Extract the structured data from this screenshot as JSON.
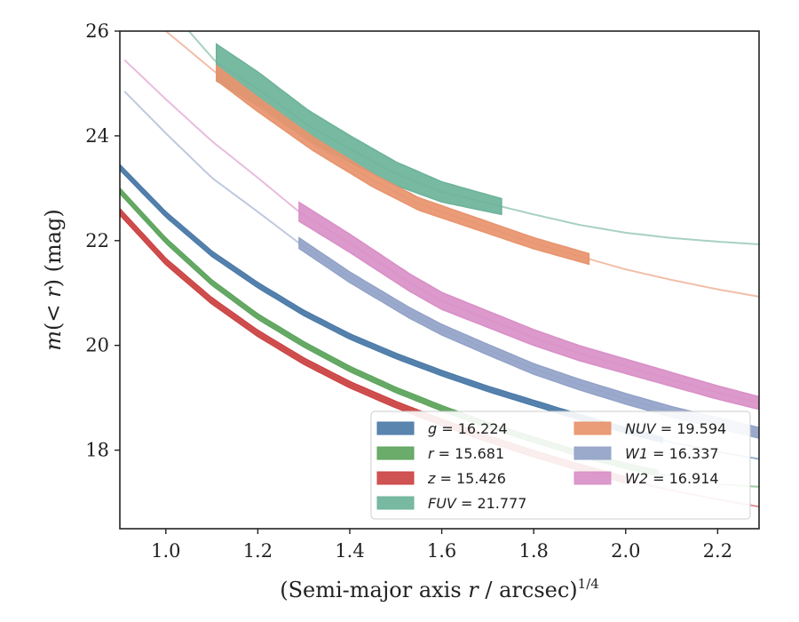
{
  "chart_data": {
    "type": "line",
    "xlabel": "(Semi-major axis r / arcsec)",
    "xlabel_sup": "1/4",
    "ylabel": "m(< r) (mag)",
    "xlim": [
      0.9,
      2.29
    ],
    "ylim": [
      26.0,
      16.5
    ],
    "y_inverted": true,
    "xticks": [
      1.0,
      1.2,
      1.4,
      1.6,
      1.8,
      2.0,
      2.2
    ],
    "xtick_labels": [
      "1.0",
      "1.2",
      "1.4",
      "1.6",
      "1.8",
      "2.0",
      "2.2"
    ],
    "yticks": [
      18,
      20,
      22,
      24,
      26
    ],
    "ytick_labels": [
      "18",
      "20",
      "22",
      "24",
      "26"
    ],
    "grid": false,
    "legend_position": "bottom-right",
    "series": [
      {
        "key": "g",
        "name": "g = 16.224",
        "color": "#4c7ba8",
        "x": [
          0.9,
          1.0,
          1.1,
          1.2,
          1.3,
          1.4,
          1.5,
          1.6,
          1.7,
          1.8,
          1.9,
          2.0,
          2.1,
          2.2,
          2.29
        ],
        "y": [
          23.4,
          22.5,
          21.75,
          21.15,
          20.62,
          20.17,
          19.8,
          19.47,
          19.17,
          18.9,
          18.63,
          18.38,
          18.15,
          17.97,
          17.83
        ],
        "solid_range": [
          0.9,
          2.08
        ],
        "band": [
          0.05,
          0.05
        ]
      },
      {
        "key": "r",
        "name": "r = 15.681",
        "color": "#5ea55e",
        "x": [
          0.9,
          1.0,
          1.1,
          1.2,
          1.3,
          1.4,
          1.5,
          1.6,
          1.7,
          1.8,
          1.9,
          2.0,
          2.1,
          2.2,
          2.29
        ],
        "y": [
          22.95,
          22.0,
          21.2,
          20.55,
          20.02,
          19.55,
          19.15,
          18.8,
          18.48,
          18.2,
          17.93,
          17.7,
          17.5,
          17.35,
          17.3
        ],
        "solid_range": [
          0.9,
          2.07
        ],
        "band": [
          0.05,
          0.05
        ]
      },
      {
        "key": "z",
        "name": "z = 15.426",
        "color": "#cc4444",
        "x": [
          0.9,
          1.0,
          1.1,
          1.2,
          1.3,
          1.4,
          1.5,
          1.6,
          1.7,
          1.8,
          1.9,
          2.0,
          2.1,
          2.2,
          2.29
        ],
        "y": [
          22.55,
          21.6,
          20.85,
          20.23,
          19.7,
          19.25,
          18.87,
          18.53,
          18.22,
          17.93,
          17.67,
          17.43,
          17.23,
          17.06,
          16.92
        ],
        "solid_range": [
          0.9,
          2.0
        ],
        "band": [
          0.06,
          0.06
        ]
      },
      {
        "key": "FUV",
        "name": "FUV = 21.777",
        "color": "#6db39a",
        "x": [
          1.05,
          1.11,
          1.2,
          1.31,
          1.4,
          1.5,
          1.6,
          1.73,
          1.8,
          1.9,
          2.0,
          2.1,
          2.2,
          2.29
        ],
        "y": [
          26.0,
          25.4,
          24.9,
          24.2,
          23.75,
          23.28,
          22.93,
          22.65,
          22.5,
          22.3,
          22.15,
          22.05,
          21.98,
          21.93
        ],
        "solid_range": [
          1.11,
          1.73
        ],
        "band": [
          0.35,
          0.15
        ]
      },
      {
        "key": "NUV",
        "name": "NUV = 19.594",
        "color": "#e8946e",
        "x": [
          1.0,
          1.11,
          1.2,
          1.32,
          1.45,
          1.55,
          1.7,
          1.8,
          1.92,
          2.0,
          2.1,
          2.2,
          2.29
        ],
        "y": [
          26.0,
          25.2,
          24.6,
          23.85,
          23.15,
          22.7,
          22.25,
          21.95,
          21.65,
          21.45,
          21.25,
          21.07,
          20.93
        ],
        "solid_range": [
          1.11,
          1.92
        ],
        "band": [
          0.14,
          0.1
        ]
      },
      {
        "key": "W1",
        "name": "W1 = 16.337",
        "color": "#93a3c8",
        "x": [
          0.91,
          1.0,
          1.1,
          1.2,
          1.29,
          1.4,
          1.53,
          1.6,
          1.7,
          1.8,
          1.9,
          2.0,
          2.1,
          2.2,
          2.29
        ],
        "y": [
          24.85,
          24.05,
          23.2,
          22.55,
          21.95,
          21.3,
          20.62,
          20.3,
          19.92,
          19.55,
          19.25,
          18.98,
          18.73,
          18.52,
          18.33
        ],
        "solid_range": [
          1.29,
          2.29
        ],
        "band": [
          0.1,
          0.1
        ]
      },
      {
        "key": "W2",
        "name": "W2 = 16.914",
        "color": "#d990c7",
        "x": [
          0.91,
          1.0,
          1.1,
          1.2,
          1.29,
          1.4,
          1.53,
          1.6,
          1.7,
          1.8,
          1.9,
          2.0,
          2.1,
          2.2,
          2.29
        ],
        "y": [
          25.45,
          24.7,
          23.9,
          23.2,
          22.55,
          21.95,
          21.2,
          20.85,
          20.5,
          20.15,
          19.85,
          19.6,
          19.35,
          19.1,
          18.9
        ],
        "solid_range": [
          1.29,
          2.29
        ],
        "band": [
          0.18,
          0.12
        ]
      }
    ],
    "legend_columns": [
      [
        "g",
        "r",
        "z",
        "FUV"
      ],
      [
        "NUV",
        "W1",
        "W2"
      ]
    ]
  }
}
